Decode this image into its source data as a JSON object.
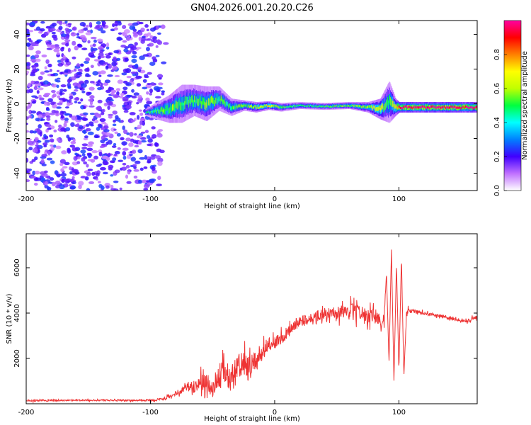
{
  "title": "GN04.2026.001.20.20.C26",
  "chart_data": [
    {
      "type": "heatmap",
      "xlabel": "Height of straight line (km)",
      "ylabel": "Frequency (Hz)",
      "xlim": [
        -200,
        163
      ],
      "ylim": [
        -50,
        48
      ],
      "xticks": [
        -200,
        -100,
        0,
        100
      ],
      "yticks": [
        -40,
        -20,
        0,
        20,
        40
      ],
      "noise_region_km": [
        -200,
        -85
      ],
      "ridge": {
        "x": [
          -104,
          -95,
          -85,
          -75,
          -65,
          -55,
          -45,
          -35,
          -25,
          -15,
          -5,
          5,
          20,
          40,
          60,
          75,
          85,
          92,
          97,
          100,
          120,
          140,
          163
        ],
        "freq_hz": [
          -5,
          -4,
          -3,
          0,
          2,
          0,
          3,
          -2,
          -1,
          -2,
          -1,
          -2,
          -1,
          -1.5,
          -1,
          -2,
          -3,
          1,
          -2,
          -2,
          -2,
          -2,
          -2
        ],
        "spread_hz": [
          2,
          5,
          8,
          11,
          9,
          10,
          7,
          5,
          3,
          3,
          2.5,
          2.5,
          2,
          2,
          2,
          3,
          6,
          12,
          5,
          3,
          3,
          3,
          3
        ],
        "amplitude": [
          0.45,
          0.5,
          0.55,
          0.5,
          0.5,
          0.55,
          0.5,
          0.5,
          0.55,
          0.6,
          0.65,
          0.5,
          0.48,
          0.5,
          0.55,
          0.6,
          0.65,
          0.45,
          0.7,
          0.95,
          1.0,
          1.0,
          0.95
        ]
      },
      "colorbar": {
        "label": "Normalized spectral amplitude",
        "ticks": [
          0.0,
          0.2,
          0.4,
          0.6,
          0.8
        ],
        "range": [
          0,
          1
        ],
        "colors": [
          "#ffffff",
          "#c070ff",
          "#4000ff",
          "#0080ff",
          "#00ffff",
          "#00ff40",
          "#c0ff00",
          "#ffff00",
          "#ff8000",
          "#ff0000",
          "#ff00a0"
        ]
      }
    },
    {
      "type": "line",
      "xlabel": "Height of straight line (km)",
      "ylabel": "SNR (10 * v/v)",
      "xlim": [
        -200,
        163
      ],
      "ylim": [
        0,
        7500
      ],
      "xticks": [
        -200,
        -100,
        0,
        100
      ],
      "yticks": [
        2000,
        4000,
        6000
      ],
      "color": "#ee3333",
      "series": [
        {
          "name": "SNR",
          "x": [
            -200,
            -180,
            -160,
            -140,
            -120,
            -100,
            -90,
            -85,
            -80,
            -75,
            -70,
            -65,
            -60,
            -55,
            -50,
            -45,
            -40,
            -35,
            -30,
            -25,
            -20,
            -15,
            -10,
            -5,
            0,
            5,
            10,
            15,
            20,
            25,
            30,
            35,
            40,
            45,
            50,
            55,
            60,
            65,
            70,
            75,
            80,
            85,
            88,
            90,
            92,
            94,
            96,
            98,
            100,
            102,
            104,
            106,
            108,
            110,
            115,
            120,
            125,
            130,
            135,
            140,
            145,
            150,
            155,
            160,
            163
          ],
          "y": [
            130,
            150,
            150,
            160,
            150,
            150,
            200,
            300,
            450,
            600,
            800,
            700,
            1000,
            900,
            700,
            1200,
            1400,
            1100,
            1600,
            1700,
            1500,
            1900,
            2300,
            2600,
            2700,
            2900,
            3100,
            3400,
            3600,
            3700,
            3800,
            3900,
            3950,
            4000,
            4000,
            4000,
            4050,
            4050,
            4000,
            3900,
            3900,
            3700,
            3600,
            5800,
            1800,
            6800,
            900,
            6200,
            1400,
            6500,
            1200,
            3900,
            4200,
            4100,
            4050,
            4000,
            3950,
            3900,
            3850,
            3800,
            3700,
            3700,
            3600,
            3800,
            3800
          ],
          "noise_amplitude": [
            50,
            40,
            40,
            40,
            40,
            50,
            80,
            100,
            150,
            200,
            250,
            300,
            400,
            500,
            600,
            700,
            700,
            800,
            800,
            700,
            700,
            600,
            500,
            400,
            350,
            350,
            350,
            300,
            300,
            300,
            300,
            320,
            350,
            380,
            400,
            420,
            450,
            480,
            450,
            420,
            400,
            400,
            400,
            0,
            0,
            0,
            0,
            0,
            0,
            0,
            0,
            200,
            120,
            100,
            90,
            90,
            90,
            90,
            90,
            90,
            90,
            90,
            100,
            100,
            100
          ]
        }
      ]
    }
  ]
}
